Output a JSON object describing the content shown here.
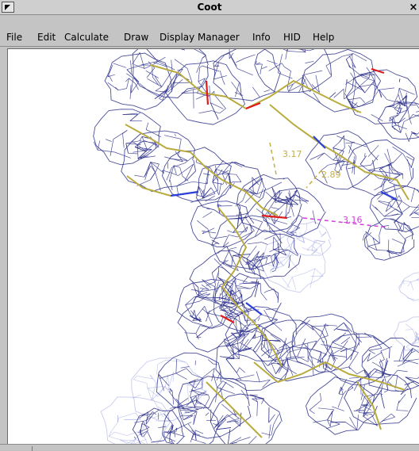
{
  "window": {
    "title": "Coot",
    "close_glyph": "×"
  },
  "menubar": {
    "items": [
      "File",
      "Edit",
      "Calculate",
      "Draw",
      "Display Manager",
      "Info",
      "HID",
      "Help"
    ]
  },
  "viewport": {
    "distance_labels": [
      "3.17",
      "2.89",
      "3.16"
    ]
  },
  "colors": {
    "mesh": "#2a2e8a",
    "mesh_faint": "#9aa2e0",
    "bond_carbon": "#b9ac3e",
    "bond_oxygen": "#e01b1b",
    "bond_nitrogen": "#2b3fd6",
    "hbond": "#c2ad48",
    "contact": "#d040d8"
  }
}
